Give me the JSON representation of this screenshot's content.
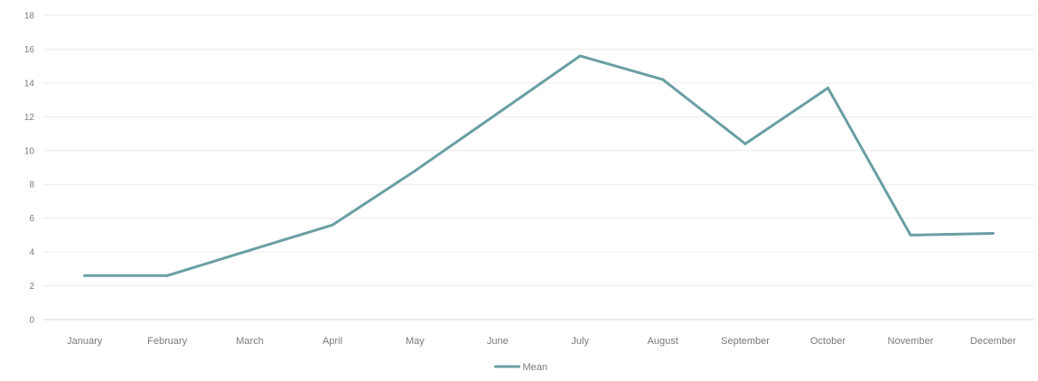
{
  "chart_data": {
    "type": "line",
    "title": "",
    "xlabel": "",
    "ylabel": "",
    "categories": [
      "January",
      "February",
      "March",
      "April",
      "May",
      "June",
      "July",
      "August",
      "September",
      "October",
      "November",
      "December"
    ],
    "series": [
      {
        "name": "Mean",
        "color": "#6a9fa2",
        "values": [
          2.6,
          2.6,
          4.1,
          5.6,
          8.8,
          12.2,
          15.6,
          14.2,
          10.4,
          13.7,
          5.0,
          5.1
        ]
      }
    ],
    "ylim": [
      0,
      18
    ],
    "y_ticks": [
      "0",
      "2",
      "4",
      "6",
      "8",
      "10",
      "12",
      "14",
      "16",
      "18"
    ],
    "grid": true,
    "legend_position": "bottom"
  }
}
